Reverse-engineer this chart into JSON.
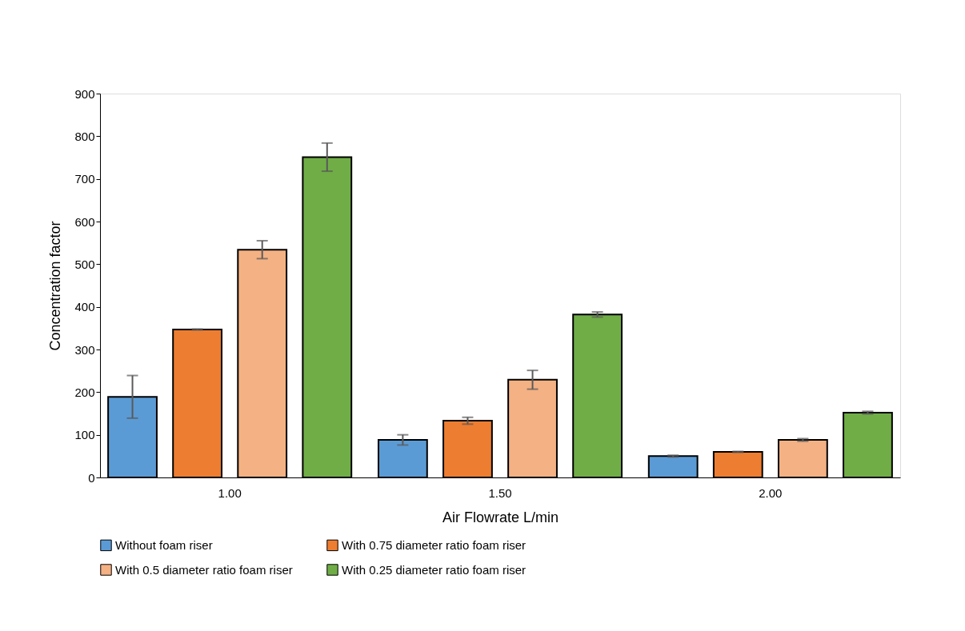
{
  "chart_data": {
    "type": "bar",
    "xlabel": "Air Flowrate L/min",
    "ylabel": "Concentration factor",
    "categories": [
      "1.00",
      "1.50",
      "2.00"
    ],
    "series": [
      {
        "name": "Without foam riser",
        "color": "#5b9bd5",
        "values": [
          189,
          88,
          50
        ],
        "errors": [
          50,
          12,
          2
        ]
      },
      {
        "name": "With 0.75 diameter ratio foam riser",
        "color": "#ed7d31",
        "values": [
          347,
          133,
          60
        ],
        "errors": [
          1,
          8,
          1
        ]
      },
      {
        "name": "With 0.5 diameter ratio foam riser",
        "color": "#f4b183",
        "values": [
          534,
          229,
          88
        ],
        "errors": [
          21,
          22,
          3
        ]
      },
      {
        "name": "With 0.25 diameter ratio foam riser",
        "color": "#70ad47",
        "values": [
          751,
          382,
          152
        ],
        "errors": [
          33,
          6,
          3
        ]
      }
    ],
    "ylim": [
      0,
      900
    ],
    "yticks": [
      0,
      100,
      200,
      300,
      400,
      500,
      600,
      700,
      800,
      900
    ],
    "grid": false,
    "legend": "bottom"
  }
}
